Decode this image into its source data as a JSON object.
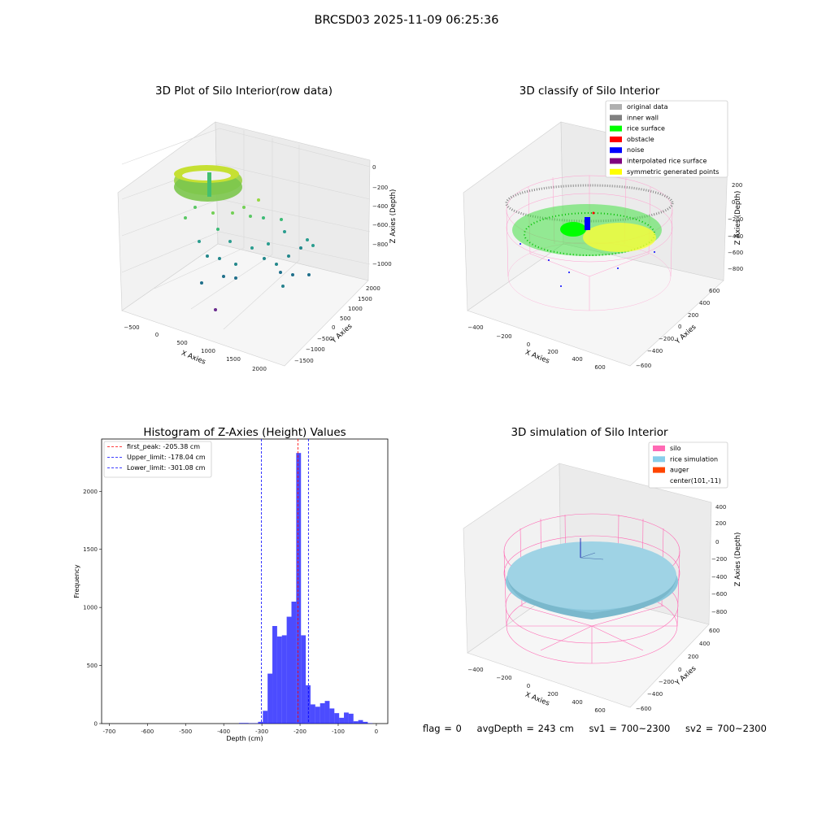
{
  "figure_title": "BRCSD03 2025-11-09 06:25:36",
  "status": {
    "flag": "flag = 0",
    "avg_depth": "avgDepth = 243 cm",
    "sv1": "sv1 = 700~2300",
    "sv2": "sv2 = 700~2300"
  },
  "chart_data": [
    {
      "type": "scatter",
      "projection": "3d",
      "title": "3D Plot of Silo Interior(row data)",
      "xlabel": "X Axies",
      "ylabel": "Y Axies",
      "zlabel": "Z Axies (Depth)",
      "x_ticks": [
        "−500",
        "0",
        "500",
        "1000",
        "1500",
        "2000"
      ],
      "y_ticks": [
        "2000",
        "1500",
        "1000",
        "500",
        "0",
        "−500",
        "−1000",
        "−1500"
      ],
      "z_ticks": [
        "0",
        "−200",
        "−400",
        "−600",
        "−800",
        "−1000"
      ],
      "xlim": [
        -600,
        2100
      ],
      "ylim": [
        -1600,
        2100
      ],
      "zlim": [
        -1100,
        0
      ],
      "colormap": "viridis",
      "grid": true
    },
    {
      "type": "scatter",
      "projection": "3d",
      "title": "3D classify of Silo Interior",
      "xlabel": "X Axies",
      "ylabel": "Y Axies",
      "zlabel": "Z Axies (Depth)",
      "x_ticks": [
        "−400",
        "−200",
        "0",
        "200",
        "400",
        "600"
      ],
      "y_ticks": [
        "600",
        "400",
        "200",
        "0",
        "−200",
        "−400",
        "−600"
      ],
      "z_ticks": [
        "200",
        "0",
        "−200",
        "−400",
        "−600",
        "−800"
      ],
      "legend_position": "top-right",
      "grid": true,
      "legend": [
        {
          "label": "original data",
          "color": "#b0b0b0"
        },
        {
          "label": "inner wall",
          "color": "#808080"
        },
        {
          "label": "rice surface",
          "color": "#00ff00"
        },
        {
          "label": "obstacle",
          "color": "#ff0000"
        },
        {
          "label": "noise",
          "color": "#0000ff"
        },
        {
          "label": "interpolated rice surface",
          "color": "#800080"
        },
        {
          "label": "symmetric generated points",
          "color": "#ffff00"
        }
      ]
    },
    {
      "type": "bar",
      "title": "Histogram of Z-Axies (Height) Values",
      "xlabel": "Depth (cm)",
      "ylabel": "Frequency",
      "xlim": [
        -720,
        30
      ],
      "ylim": [
        0,
        2450
      ],
      "x_ticks": [
        -700,
        -600,
        -500,
        -400,
        -300,
        -200,
        -100,
        0
      ],
      "y_ticks": [
        0,
        500,
        1000,
        1500,
        2000
      ],
      "bar_color": "#0000ff",
      "bin_width": 12.5,
      "bin_starts": [
        -360,
        -347.5,
        -335,
        -322.5,
        -310,
        -297.5,
        -285,
        -272.5,
        -260,
        -247.5,
        -235,
        -222.5,
        -210,
        -197.5,
        -185,
        -172.5,
        -160,
        -147.5,
        -135,
        -122.5,
        -110,
        -97.5,
        -85,
        -72.5,
        -60,
        -47.5,
        -35,
        -22.5
      ],
      "values": [
        5,
        5,
        3,
        3,
        15,
        110,
        430,
        840,
        750,
        760,
        920,
        1050,
        2330,
        760,
        330,
        165,
        145,
        175,
        195,
        130,
        90,
        50,
        95,
        85,
        20,
        30,
        15,
        3
      ],
      "legend_position": "top-left",
      "vlines": [
        {
          "label": "first_peak: -205.38 cm",
          "x": -205.38,
          "color": "#ff0000"
        },
        {
          "label": "Upper_limit: -178.04 cm",
          "x": -178.04,
          "color": "#0000ff"
        },
        {
          "label": "Lower_limit: -301.08 cm",
          "x": -301.08,
          "color": "#0000ff"
        }
      ]
    },
    {
      "type": "surface",
      "projection": "3d",
      "title": "3D simulation of Silo Interior",
      "xlabel": "X Axies",
      "ylabel": "Y Axies",
      "zlabel": "Z Axies (Depth)",
      "x_ticks": [
        "−400",
        "−200",
        "0",
        "200",
        "400",
        "600"
      ],
      "y_ticks": [
        "600",
        "400",
        "200",
        "0",
        "−200",
        "−400",
        "−600"
      ],
      "z_ticks": [
        "400",
        "200",
        "0",
        "−200",
        "−400",
        "−600",
        "−800"
      ],
      "legend_position": "top-right",
      "grid": true,
      "legend": [
        {
          "label": "silo",
          "color": "#ff69b4"
        },
        {
          "label": "rice simulation",
          "color": "#87ceeb"
        },
        {
          "label": "auger",
          "color": "#ff4500"
        },
        {
          "label": "center(101,-11)",
          "color": ""
        }
      ]
    }
  ]
}
